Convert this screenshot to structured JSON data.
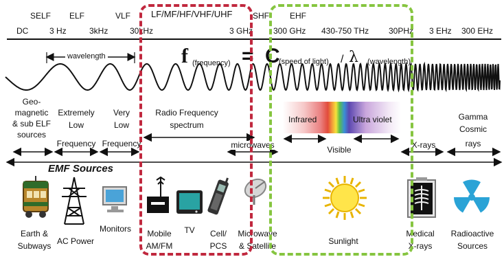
{
  "freq_labels": {
    "dc": "DC",
    "selfl": "SELF",
    "elf": "ELF",
    "hz3": "3 Hz",
    "khz3": "3kHz",
    "vlf": "VLF",
    "khz30": "30kHz",
    "lf_uhf": "LF/MF/HF/VHF/UHF",
    "shf": "SHF",
    "ghz3": "3 GHz",
    "ehf": "EHF",
    "ghz300": "300 GHz",
    "thz": "430-750 THz",
    "phz30": "30PHz",
    "ehz3": "3 EHz",
    "ehz300": "300 EHz"
  },
  "wave": {
    "wavelength_label": "wavelength"
  },
  "formula": {
    "f": "f",
    "f_sub": "(frequency)",
    "eq": "=",
    "c": "C",
    "c_sub": "(speed of light)",
    "slash": "/",
    "lambda": "λ",
    "lambda_sub": "(wavelength)"
  },
  "bands": {
    "geo": [
      "Geo-",
      "magnetic",
      "& sub ELF",
      "sources"
    ],
    "extremely_low": [
      "Extremely",
      "Low",
      "Frequency"
    ],
    "very_low": [
      "Very",
      "Low",
      "Frequency"
    ],
    "radio": [
      "Radio Frequency",
      "spectrum"
    ],
    "microwaves": "microwaves",
    "infrared": "Infrared",
    "ultraviolet": "Ultra violet",
    "visible": "Visible",
    "xrays": "X-rays",
    "gamma": [
      "Gamma",
      "Cosmic",
      "rays"
    ]
  },
  "emf_title": "EMF Sources",
  "sources": {
    "earth": [
      "Earth &",
      "Subways"
    ],
    "ac_power": "AC Power",
    "monitors": "Monitors",
    "mobile": [
      "Mobile",
      "AM/FM"
    ],
    "tv": "TV",
    "cell": [
      "Cell/",
      "PCS"
    ],
    "microwave": [
      "Microwave",
      "& Satellite"
    ],
    "sunlight": "Sunlight",
    "medical": [
      "Medical",
      "X-rays"
    ],
    "radioactive": [
      "Radioactive",
      "Sources"
    ]
  },
  "colors": {
    "red_box": "#c0283e",
    "green_box": "#86c540"
  }
}
